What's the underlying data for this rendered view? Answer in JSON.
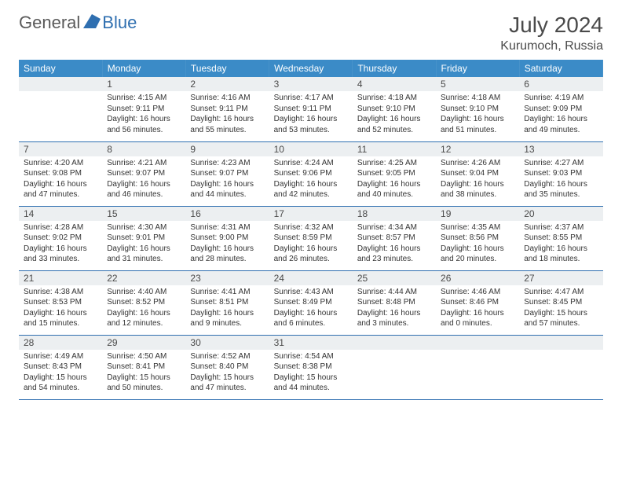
{
  "logo": {
    "general": "General",
    "blue": "Blue"
  },
  "title": "July 2024",
  "location": "Kurumoch, Russia",
  "weekdays": [
    "Sunday",
    "Monday",
    "Tuesday",
    "Wednesday",
    "Thursday",
    "Friday",
    "Saturday"
  ],
  "colors": {
    "header_bg": "#3b8bc7",
    "header_text": "#ffffff",
    "daynum_bg": "#eceff1",
    "border": "#2f6fb0",
    "text": "#333333",
    "logo_gray": "#5a5a5a",
    "logo_blue": "#2f6fb0"
  },
  "weeks": [
    [
      {
        "n": "",
        "sr": "",
        "ss": "",
        "dl": ""
      },
      {
        "n": "1",
        "sr": "Sunrise: 4:15 AM",
        "ss": "Sunset: 9:11 PM",
        "dl": "Daylight: 16 hours and 56 minutes."
      },
      {
        "n": "2",
        "sr": "Sunrise: 4:16 AM",
        "ss": "Sunset: 9:11 PM",
        "dl": "Daylight: 16 hours and 55 minutes."
      },
      {
        "n": "3",
        "sr": "Sunrise: 4:17 AM",
        "ss": "Sunset: 9:11 PM",
        "dl": "Daylight: 16 hours and 53 minutes."
      },
      {
        "n": "4",
        "sr": "Sunrise: 4:18 AM",
        "ss": "Sunset: 9:10 PM",
        "dl": "Daylight: 16 hours and 52 minutes."
      },
      {
        "n": "5",
        "sr": "Sunrise: 4:18 AM",
        "ss": "Sunset: 9:10 PM",
        "dl": "Daylight: 16 hours and 51 minutes."
      },
      {
        "n": "6",
        "sr": "Sunrise: 4:19 AM",
        "ss": "Sunset: 9:09 PM",
        "dl": "Daylight: 16 hours and 49 minutes."
      }
    ],
    [
      {
        "n": "7",
        "sr": "Sunrise: 4:20 AM",
        "ss": "Sunset: 9:08 PM",
        "dl": "Daylight: 16 hours and 47 minutes."
      },
      {
        "n": "8",
        "sr": "Sunrise: 4:21 AM",
        "ss": "Sunset: 9:07 PM",
        "dl": "Daylight: 16 hours and 46 minutes."
      },
      {
        "n": "9",
        "sr": "Sunrise: 4:23 AM",
        "ss": "Sunset: 9:07 PM",
        "dl": "Daylight: 16 hours and 44 minutes."
      },
      {
        "n": "10",
        "sr": "Sunrise: 4:24 AM",
        "ss": "Sunset: 9:06 PM",
        "dl": "Daylight: 16 hours and 42 minutes."
      },
      {
        "n": "11",
        "sr": "Sunrise: 4:25 AM",
        "ss": "Sunset: 9:05 PM",
        "dl": "Daylight: 16 hours and 40 minutes."
      },
      {
        "n": "12",
        "sr": "Sunrise: 4:26 AM",
        "ss": "Sunset: 9:04 PM",
        "dl": "Daylight: 16 hours and 38 minutes."
      },
      {
        "n": "13",
        "sr": "Sunrise: 4:27 AM",
        "ss": "Sunset: 9:03 PM",
        "dl": "Daylight: 16 hours and 35 minutes."
      }
    ],
    [
      {
        "n": "14",
        "sr": "Sunrise: 4:28 AM",
        "ss": "Sunset: 9:02 PM",
        "dl": "Daylight: 16 hours and 33 minutes."
      },
      {
        "n": "15",
        "sr": "Sunrise: 4:30 AM",
        "ss": "Sunset: 9:01 PM",
        "dl": "Daylight: 16 hours and 31 minutes."
      },
      {
        "n": "16",
        "sr": "Sunrise: 4:31 AM",
        "ss": "Sunset: 9:00 PM",
        "dl": "Daylight: 16 hours and 28 minutes."
      },
      {
        "n": "17",
        "sr": "Sunrise: 4:32 AM",
        "ss": "Sunset: 8:59 PM",
        "dl": "Daylight: 16 hours and 26 minutes."
      },
      {
        "n": "18",
        "sr": "Sunrise: 4:34 AM",
        "ss": "Sunset: 8:57 PM",
        "dl": "Daylight: 16 hours and 23 minutes."
      },
      {
        "n": "19",
        "sr": "Sunrise: 4:35 AM",
        "ss": "Sunset: 8:56 PM",
        "dl": "Daylight: 16 hours and 20 minutes."
      },
      {
        "n": "20",
        "sr": "Sunrise: 4:37 AM",
        "ss": "Sunset: 8:55 PM",
        "dl": "Daylight: 16 hours and 18 minutes."
      }
    ],
    [
      {
        "n": "21",
        "sr": "Sunrise: 4:38 AM",
        "ss": "Sunset: 8:53 PM",
        "dl": "Daylight: 16 hours and 15 minutes."
      },
      {
        "n": "22",
        "sr": "Sunrise: 4:40 AM",
        "ss": "Sunset: 8:52 PM",
        "dl": "Daylight: 16 hours and 12 minutes."
      },
      {
        "n": "23",
        "sr": "Sunrise: 4:41 AM",
        "ss": "Sunset: 8:51 PM",
        "dl": "Daylight: 16 hours and 9 minutes."
      },
      {
        "n": "24",
        "sr": "Sunrise: 4:43 AM",
        "ss": "Sunset: 8:49 PM",
        "dl": "Daylight: 16 hours and 6 minutes."
      },
      {
        "n": "25",
        "sr": "Sunrise: 4:44 AM",
        "ss": "Sunset: 8:48 PM",
        "dl": "Daylight: 16 hours and 3 minutes."
      },
      {
        "n": "26",
        "sr": "Sunrise: 4:46 AM",
        "ss": "Sunset: 8:46 PM",
        "dl": "Daylight: 16 hours and 0 minutes."
      },
      {
        "n": "27",
        "sr": "Sunrise: 4:47 AM",
        "ss": "Sunset: 8:45 PM",
        "dl": "Daylight: 15 hours and 57 minutes."
      }
    ],
    [
      {
        "n": "28",
        "sr": "Sunrise: 4:49 AM",
        "ss": "Sunset: 8:43 PM",
        "dl": "Daylight: 15 hours and 54 minutes."
      },
      {
        "n": "29",
        "sr": "Sunrise: 4:50 AM",
        "ss": "Sunset: 8:41 PM",
        "dl": "Daylight: 15 hours and 50 minutes."
      },
      {
        "n": "30",
        "sr": "Sunrise: 4:52 AM",
        "ss": "Sunset: 8:40 PM",
        "dl": "Daylight: 15 hours and 47 minutes."
      },
      {
        "n": "31",
        "sr": "Sunrise: 4:54 AM",
        "ss": "Sunset: 8:38 PM",
        "dl": "Daylight: 15 hours and 44 minutes."
      },
      {
        "n": "",
        "sr": "",
        "ss": "",
        "dl": ""
      },
      {
        "n": "",
        "sr": "",
        "ss": "",
        "dl": ""
      },
      {
        "n": "",
        "sr": "",
        "ss": "",
        "dl": ""
      }
    ]
  ]
}
